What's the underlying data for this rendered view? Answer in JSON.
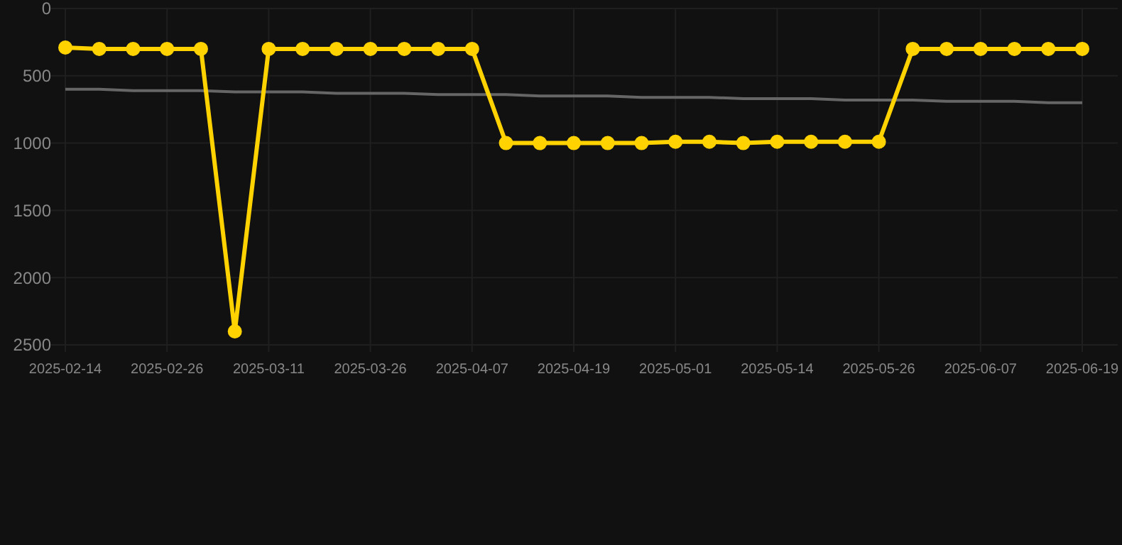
{
  "chart_data": {
    "type": "line",
    "categories": [
      "2025-02-14",
      null,
      null,
      "2025-02-26",
      null,
      null,
      "2025-03-11",
      null,
      null,
      "2025-03-26",
      null,
      null,
      "2025-04-07",
      null,
      null,
      "2025-04-19",
      null,
      null,
      "2025-05-01",
      null,
      null,
      "2025-05-14",
      null,
      null,
      "2025-05-26",
      null,
      null,
      "2025-06-07",
      null,
      null,
      "2025-06-19"
    ],
    "series": [
      {
        "color": "#ffd200",
        "marker": "circle",
        "values": [
          290,
          300,
          300,
          300,
          300,
          2400,
          300,
          300,
          300,
          300,
          300,
          300,
          300,
          1000,
          1000,
          1000,
          1000,
          1000,
          990,
          990,
          1000,
          990,
          990,
          990,
          990,
          300,
          300,
          300,
          300,
          300,
          300
        ]
      },
      {
        "type": "line",
        "color": "#666666",
        "marker": "none",
        "values": [
          600,
          600,
          610,
          610,
          610,
          620,
          620,
          620,
          630,
          630,
          630,
          640,
          640,
          640,
          650,
          650,
          650,
          660,
          660,
          660,
          670,
          670,
          670,
          680,
          680,
          680,
          690,
          690,
          690,
          700,
          700
        ]
      }
    ],
    "ylim": [
      2500,
      0
    ],
    "yticks": [
      0,
      500,
      1000,
      1500,
      2000,
      2500
    ],
    "grid": true,
    "line_style": "solid"
  }
}
